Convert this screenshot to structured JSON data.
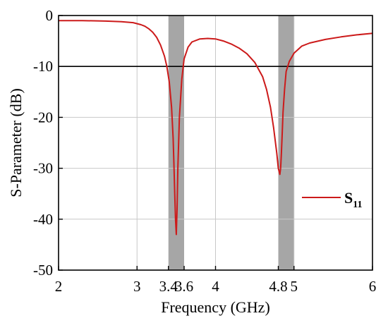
{
  "chart_data": {
    "type": "line",
    "title": "",
    "xlabel": "Frequency (GHz)",
    "ylabel": "S-Parameter (dB)",
    "xlim": [
      2,
      6
    ],
    "ylim": [
      -50,
      0
    ],
    "x_ticks": [
      "2",
      "3",
      "3.4",
      "3.6",
      "4",
      "4.8",
      "5",
      "6"
    ],
    "x_tick_values": [
      2,
      3,
      3.4,
      3.6,
      4,
      4.8,
      5,
      6
    ],
    "y_ticks": [
      "0",
      "-10",
      "-20",
      "-30",
      "-40",
      "-50"
    ],
    "y_tick_values": [
      0,
      -10,
      -20,
      -30,
      -40,
      -50
    ],
    "grid": true,
    "reference_line": {
      "y": -10
    },
    "shaded_bands": [
      {
        "x_start": 3.4,
        "x_end": 3.6,
        "color": "#a6a6a6"
      },
      {
        "x_start": 4.8,
        "x_end": 5.0,
        "color": "#a6a6a6"
      }
    ],
    "legend_position": "middle-right",
    "series": [
      {
        "name": "S11",
        "legend_main": "S",
        "legend_sub": "11",
        "color": "#cc1a1a",
        "x": [
          2.0,
          2.3,
          2.6,
          2.8,
          2.95,
          3.05,
          3.1,
          3.15,
          3.2,
          3.25,
          3.3,
          3.35,
          3.38,
          3.41,
          3.44,
          3.46,
          3.47,
          3.48,
          3.49,
          3.5,
          3.51,
          3.52,
          3.54,
          3.57,
          3.6,
          3.65,
          3.7,
          3.8,
          3.9,
          4.0,
          4.1,
          4.2,
          4.3,
          4.4,
          4.5,
          4.6,
          4.65,
          4.7,
          4.74,
          4.78,
          4.8,
          4.82,
          4.83,
          4.84,
          4.85,
          4.86,
          4.88,
          4.9,
          4.94,
          5.0,
          5.1,
          5.2,
          5.4,
          5.6,
          5.8,
          6.0
        ],
        "y": [
          -1.0,
          -1.0,
          -1.1,
          -1.2,
          -1.4,
          -1.8,
          -2.1,
          -2.6,
          -3.3,
          -4.3,
          -5.8,
          -8.0,
          -10.0,
          -13.0,
          -18.0,
          -24.0,
          -29.0,
          -35.0,
          -40.0,
          -43.0,
          -38.0,
          -30.0,
          -20.0,
          -12.5,
          -8.5,
          -6.2,
          -5.2,
          -4.6,
          -4.5,
          -4.6,
          -5.0,
          -5.6,
          -6.4,
          -7.5,
          -9.2,
          -12.0,
          -14.5,
          -18.0,
          -22.0,
          -27.0,
          -30.0,
          -31.2,
          -30.0,
          -27.0,
          -23.0,
          -19.0,
          -14.5,
          -11.0,
          -9.0,
          -7.4,
          -6.0,
          -5.4,
          -4.7,
          -4.2,
          -3.8,
          -3.5
        ]
      }
    ]
  }
}
